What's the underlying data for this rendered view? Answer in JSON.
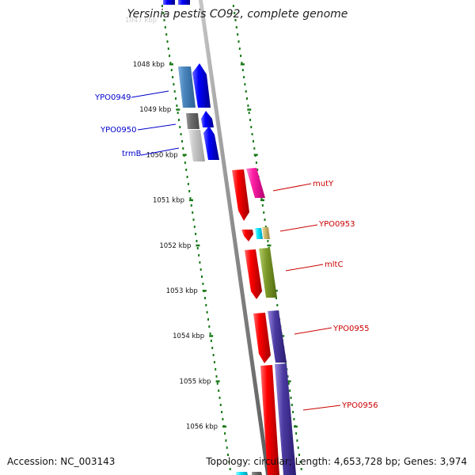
{
  "title": "Yersinia pestis CO92, complete genome",
  "top_clipped_label": "1047 kbp",
  "ticks": [
    "1048 kbp",
    "1049 kbp",
    "1050 kbp",
    "1051 kbp",
    "1052 kbp",
    "1053 kbp",
    "1054 kbp",
    "1055 kbp",
    "1056 kbp"
  ],
  "genes_forward": [
    {
      "name": "YPO0949",
      "color": "#0000cc"
    },
    {
      "name": "YPO0950",
      "color": "#0000cc"
    },
    {
      "name": "trmB",
      "color": "#0000cc"
    }
  ],
  "genes_reverse": [
    {
      "name": "mutY",
      "color": "#cc0000"
    },
    {
      "name": "YPO0953",
      "color": "#cc0000"
    },
    {
      "name": "mltC",
      "color": "#cc0000"
    },
    {
      "name": "YPO0955",
      "color": "#cc0000"
    },
    {
      "name": "YPO0956",
      "color": "#cc0000"
    }
  ],
  "footer": {
    "accession": "Accession: NC_003143",
    "stats": "Topology: circular; Length: 4,653,728 bp; Genes: 3,974"
  },
  "colors": {
    "forward_strand": "#0000ff",
    "reverse_strand": "#ff0000",
    "backbone": "#888888",
    "tick_marks": "#1a7a1a"
  }
}
